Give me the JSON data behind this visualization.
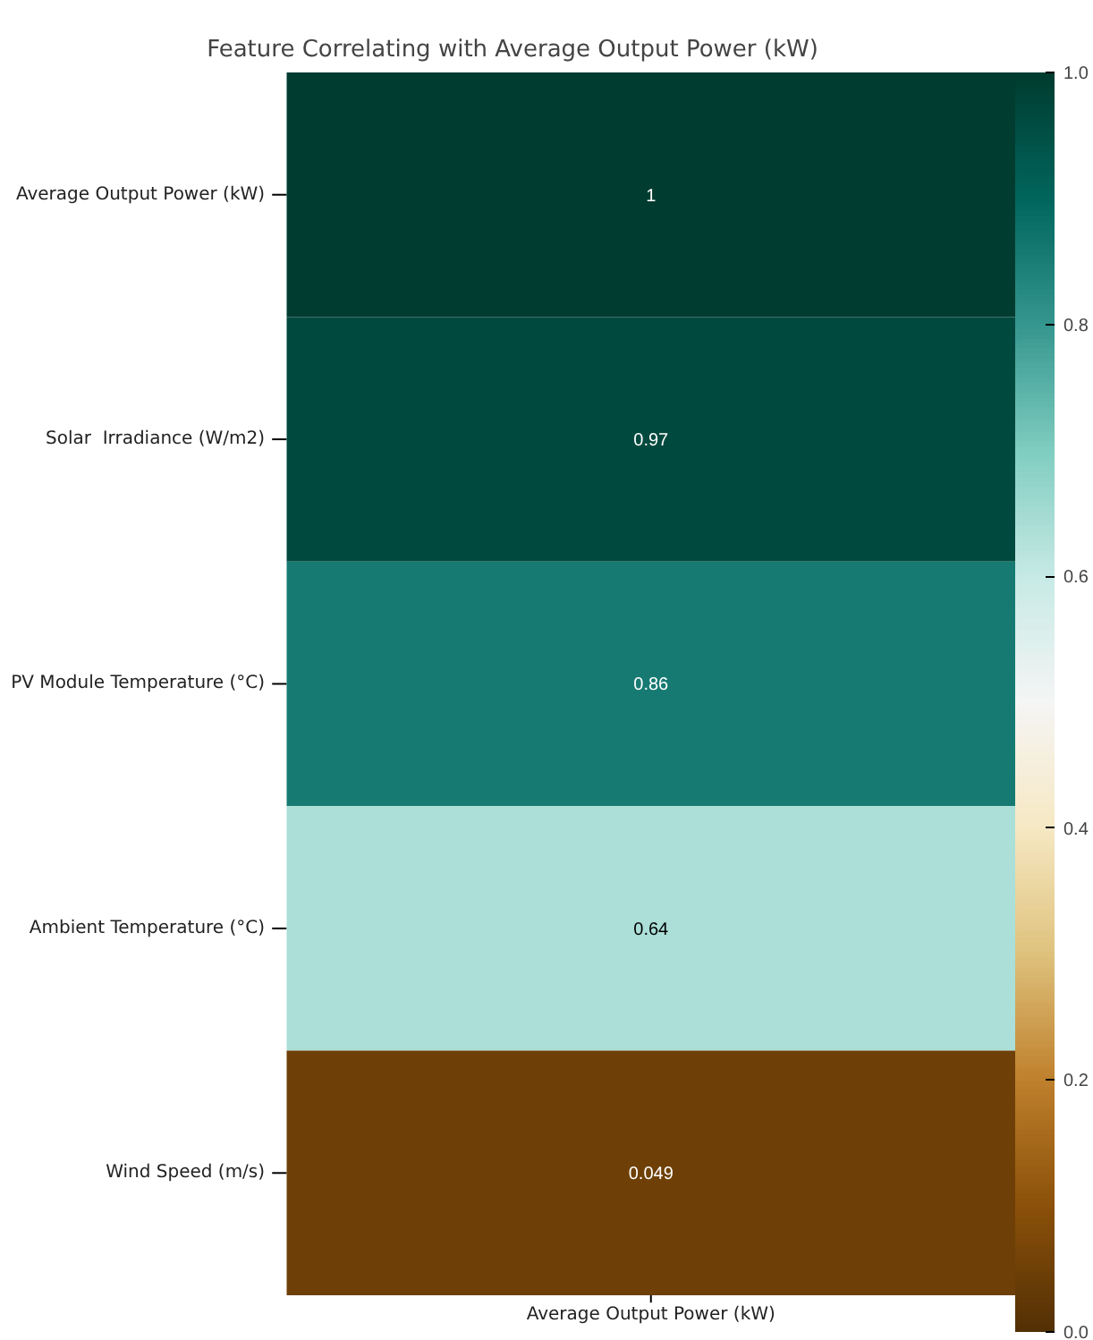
{
  "chart_data": {
    "type": "heatmap",
    "title": "Feature Correlating with Average Output Power (kW)",
    "categories": [
      null
    ],
    "xlabel": "Average Output Power (kW)",
    "y_categories": [
      "Average Output Power (kW)",
      "Solar  Irradiance (W/m2)",
      "PV Module Temperature (°C)",
      "Ambient Temperature (°C)",
      "Wind Speed (m/s)"
    ],
    "cells": [
      [
        1
      ],
      [
        0.97
      ],
      [
        0.86
      ],
      [
        0.64
      ],
      [
        0.049
      ]
    ],
    "data_labels": true,
    "clim": [
      0,
      1
    ],
    "cticks": [
      {
        "value": 0,
        "label": "0.0"
      },
      {
        "value": 0.2,
        "label": "0.2"
      },
      {
        "value": 0.4,
        "label": "0.4"
      },
      {
        "value": 0.6,
        "label": "0.6"
      },
      {
        "value": 0.8,
        "label": "0.8"
      },
      {
        "value": 1,
        "label": "1.0"
      }
    ]
  }
}
